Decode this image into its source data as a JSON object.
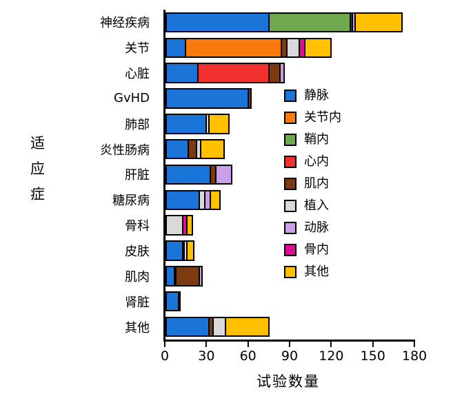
{
  "chart_data": {
    "type": "bar",
    "orientation": "horizontal",
    "title": "",
    "xlabel": "试验数量",
    "ylabel": "适应症",
    "xlim": [
      0,
      180
    ],
    "xticks": [
      0,
      30,
      60,
      90,
      120,
      150,
      180
    ],
    "grid": false,
    "legend_position": "inside-right",
    "categories": [
      "神经疾病",
      "关节",
      "心脏",
      "GvHD",
      "肺部",
      "炎性肠病",
      "肝脏",
      "糖尿病",
      "骨科",
      "皮肤",
      "肌肉",
      "肾脏",
      "其他"
    ],
    "series": [
      {
        "name": "静脉",
        "color": "#1b75d8",
        "values": [
          75,
          15,
          24,
          60,
          30,
          17,
          33,
          25,
          0,
          13,
          7,
          10,
          32
        ]
      },
      {
        "name": "关节内",
        "color": "#f97b0e",
        "values": [
          0,
          70,
          0,
          0,
          0,
          0,
          0,
          0,
          0,
          2,
          0,
          0,
          0
        ]
      },
      {
        "name": "鞘内",
        "color": "#6fa84e",
        "values": [
          60,
          0,
          0,
          0,
          0,
          0,
          0,
          0,
          0,
          0,
          0,
          0,
          0
        ]
      },
      {
        "name": "心内",
        "color": "#f2302e",
        "values": [
          0,
          0,
          52,
          0,
          0,
          0,
          0,
          0,
          0,
          0,
          2,
          0,
          0
        ]
      },
      {
        "name": "肌内",
        "color": "#7b3a10",
        "values": [
          2,
          5,
          9,
          3,
          0,
          7,
          5,
          0,
          0,
          0,
          18,
          0,
          4
        ]
      },
      {
        "name": "植入",
        "color": "#d9d9d9",
        "values": [
          0,
          10,
          0,
          0,
          3,
          4,
          0,
          5,
          13,
          3,
          0,
          0,
          10
        ]
      },
      {
        "name": "动脉",
        "color": "#c9a0e8",
        "values": [
          3,
          0,
          4,
          0,
          0,
          0,
          12,
          5,
          0,
          0,
          3,
          1,
          0
        ]
      },
      {
        "name": "骨内",
        "color": "#de0d92",
        "values": [
          0,
          5,
          0,
          0,
          0,
          0,
          0,
          0,
          4,
          0,
          0,
          0,
          0
        ]
      },
      {
        "name": "其他",
        "color": "#ffc000",
        "values": [
          35,
          20,
          0,
          0,
          15,
          18,
          0,
          8,
          5,
          6,
          0,
          0,
          32
        ]
      }
    ]
  }
}
